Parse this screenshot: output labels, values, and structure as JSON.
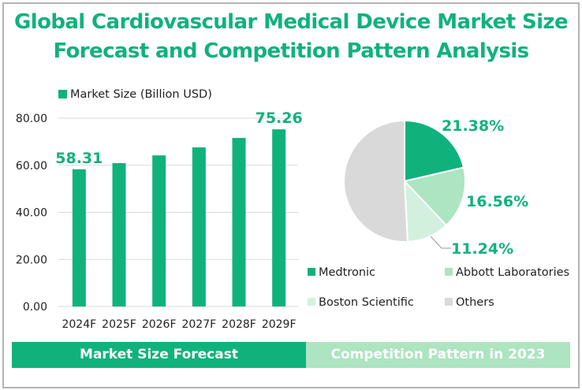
{
  "title_line1": "Global Cardiovascular Medical Device Market Size",
  "title_line2": "Forecast and Competition Pattern Analysis",
  "colors": {
    "primary": "#10b27c",
    "abbott": "#ade4c1",
    "boston": "#d2f0dd",
    "others": "#d9d9d9",
    "grid": "#d9d9d9"
  },
  "banners": {
    "left": "Market Size Forecast",
    "right": "Competition Pattern in 2023"
  },
  "chart_data": [
    {
      "type": "bar",
      "title": "Market Size Forecast",
      "legend": "Market Size (Billion USD)",
      "legend_position": "top-left",
      "categories": [
        "2024F",
        "2025F",
        "2026F",
        "2027F",
        "2028F",
        "2029F"
      ],
      "values": [
        58.31,
        60.9,
        64.2,
        67.6,
        71.6,
        75.26
      ],
      "data_labels": [
        "58.31",
        "",
        "",
        "",
        "",
        "75.26"
      ],
      "ylim": [
        0,
        80
      ],
      "yticks": [
        0,
        20,
        40,
        60,
        80
      ],
      "ytick_labels": [
        "0.00",
        "20.00",
        "40.00",
        "60.00",
        "80.00"
      ],
      "grid": true,
      "xlabel": "",
      "ylabel": ""
    },
    {
      "type": "pie",
      "title": "Competition Pattern in 2023",
      "legend_position": "bottom",
      "labels": [
        "Medtronic",
        "Abbott Laboratories",
        "Boston Scientific",
        "Others"
      ],
      "values": [
        21.38,
        16.56,
        11.24,
        50.82
      ],
      "data_labels": [
        "21.38%",
        "16.56%",
        "11.24%",
        ""
      ]
    }
  ]
}
